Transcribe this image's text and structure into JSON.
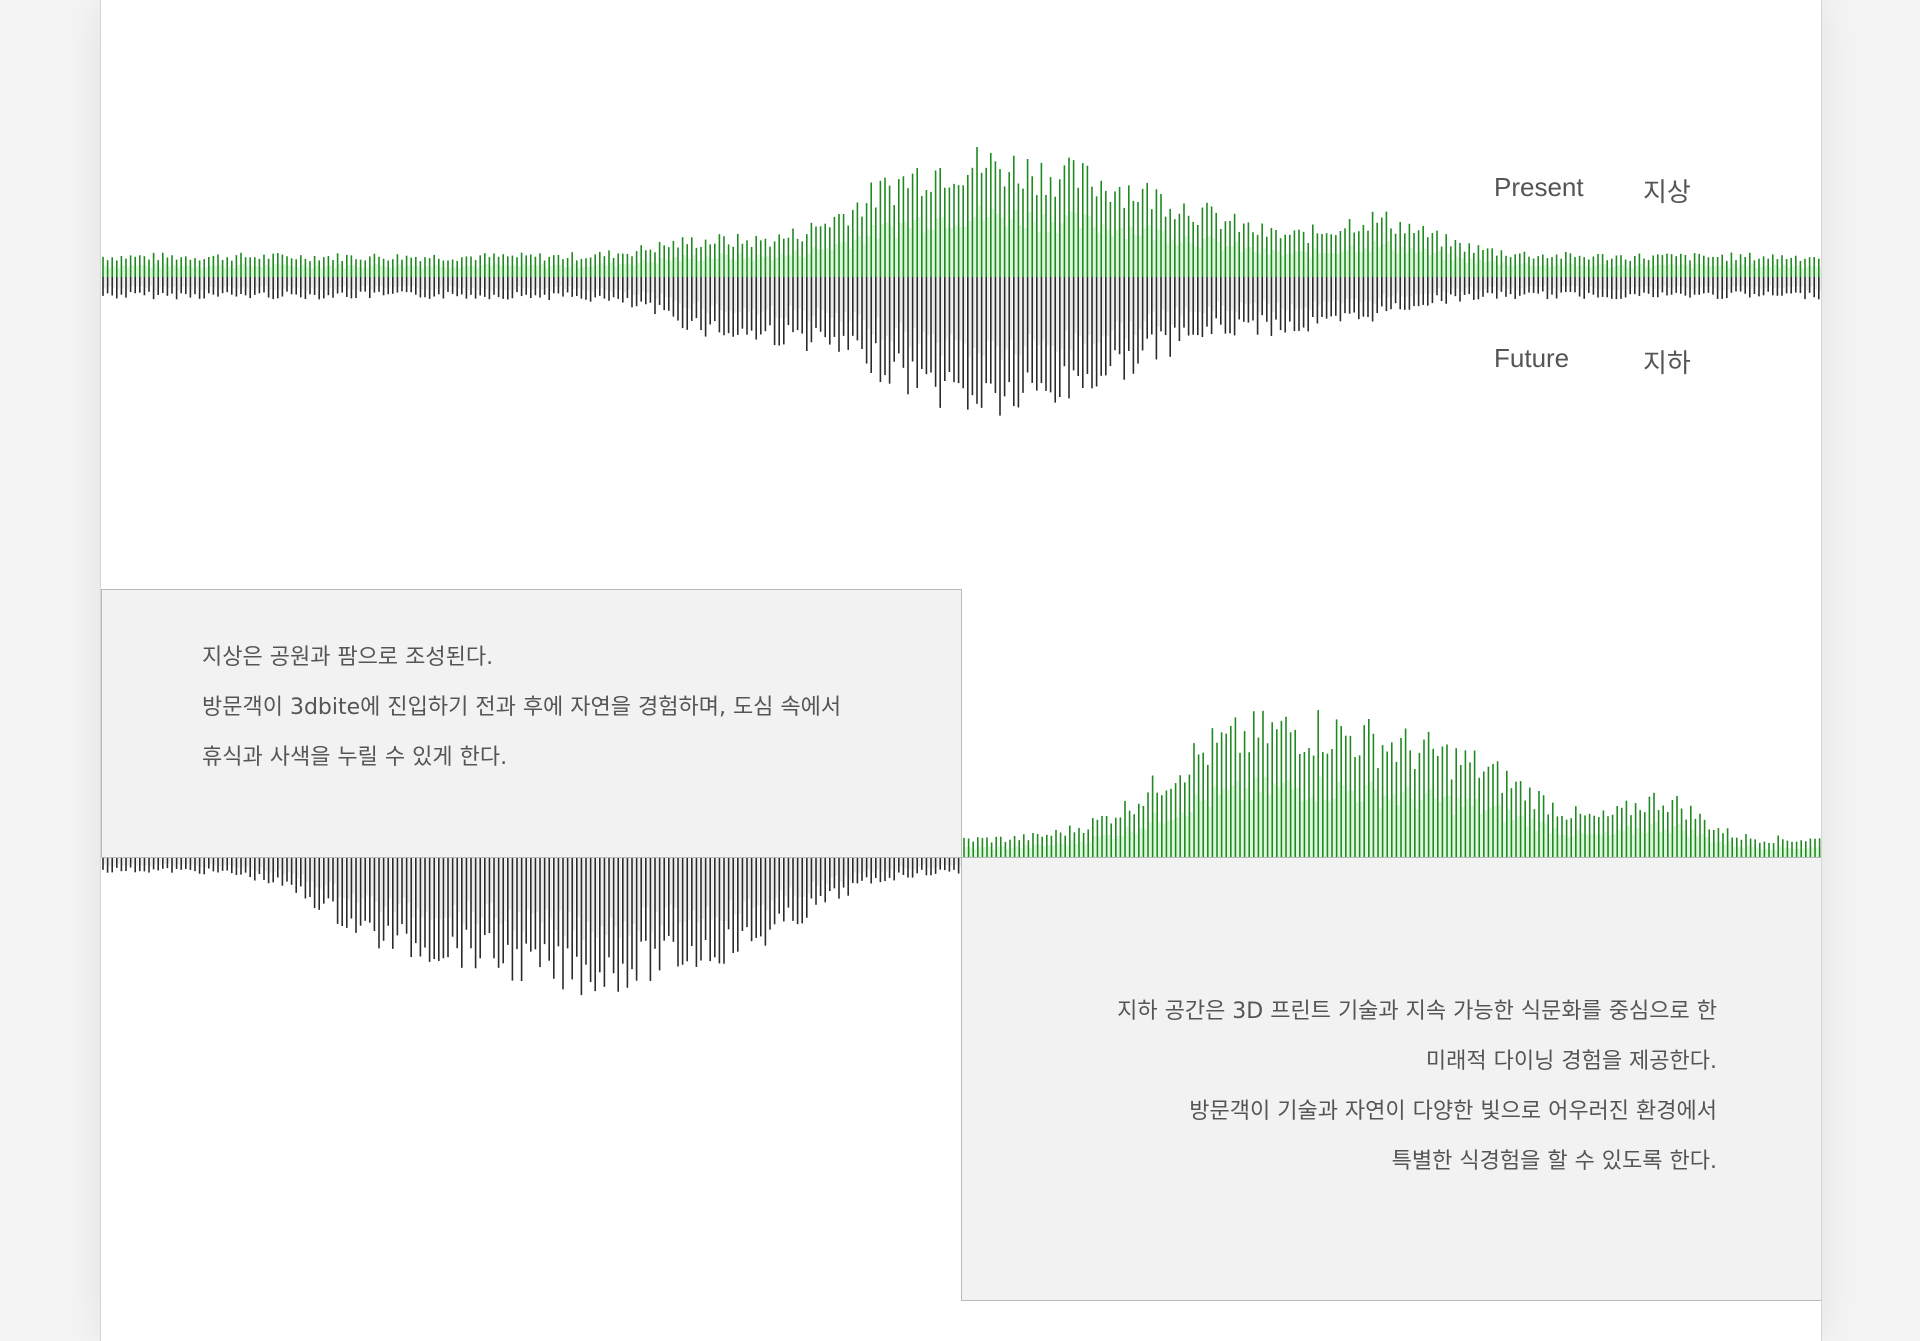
{
  "labels": {
    "present_en": "Present",
    "present_ko": "지상",
    "future_en": "Future",
    "future_ko": "지하"
  },
  "ground_text": [
    "지상은 공원과 팜으로 조성된다.",
    "방문객이 3dbite에 진입하기 전과 후에 자연을 경험하며, 도심 속에서",
    "휴식과 사색을 누릴 수 있게 한다."
  ],
  "underground_text": [
    "지하 공간은 3D 프린트 기술과 지속 가능한 식문화를 중심으로 한",
    "미래적 다이닝 경험을 제공한다.",
    "방문객이 기술과 자연이 다양한 빛으로 어우러진 환경에서",
    "특별한 식경험을 할 수 있도록 한다."
  ],
  "colors": {
    "above_bars": "#1f8a1f",
    "above_glow": "#3fd23f",
    "below_bars": "#2b2b2b",
    "panel_bg": "#f2f2f2"
  }
}
